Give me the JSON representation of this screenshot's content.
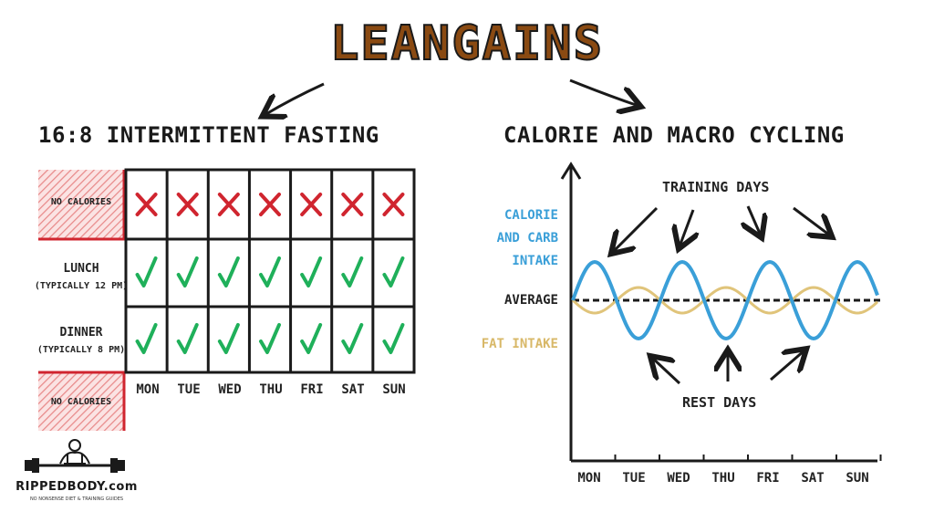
{
  "title": "LEANGAINS",
  "left": {
    "title": "16:8 INTERMITTENT FASTING",
    "rows": [
      {
        "label": "NO CALORIES",
        "sub": "",
        "mark": "cross"
      },
      {
        "label": "LUNCH",
        "sub": "(TYPICALLY 12 PM)",
        "mark": "check"
      },
      {
        "label": "DINNER",
        "sub": "(TYPICALLY 8 PM)",
        "mark": "check"
      }
    ],
    "bottom_label": "NO CALORIES",
    "days": [
      "MON",
      "TUE",
      "WED",
      "THU",
      "FRI",
      "SAT",
      "SUN"
    ]
  },
  "right": {
    "title": "CALORIE AND MACRO CYCLING",
    "training_days": "TRAINING DAYS",
    "rest_days": "REST DAYS",
    "legend_carb": [
      "CALORIE",
      "AND CARB",
      "INTAKE"
    ],
    "legend_average": "AVERAGE",
    "legend_fat": "FAT INTAKE",
    "days": [
      "MON",
      "TUE",
      "WED",
      "THU",
      "FRI",
      "SAT",
      "SUN"
    ]
  },
  "colors": {
    "cross": "#d0252f",
    "check": "#1fb05a",
    "carb": "#3a9fd8",
    "fat": "#e0c47a",
    "hatch": "#e88a8a",
    "title_fill": "#8a4a12"
  },
  "logo": {
    "text": "RIPPEDBODY.com",
    "tagline": "NO NONSENSE DIET & TRAINING GUIDES"
  }
}
